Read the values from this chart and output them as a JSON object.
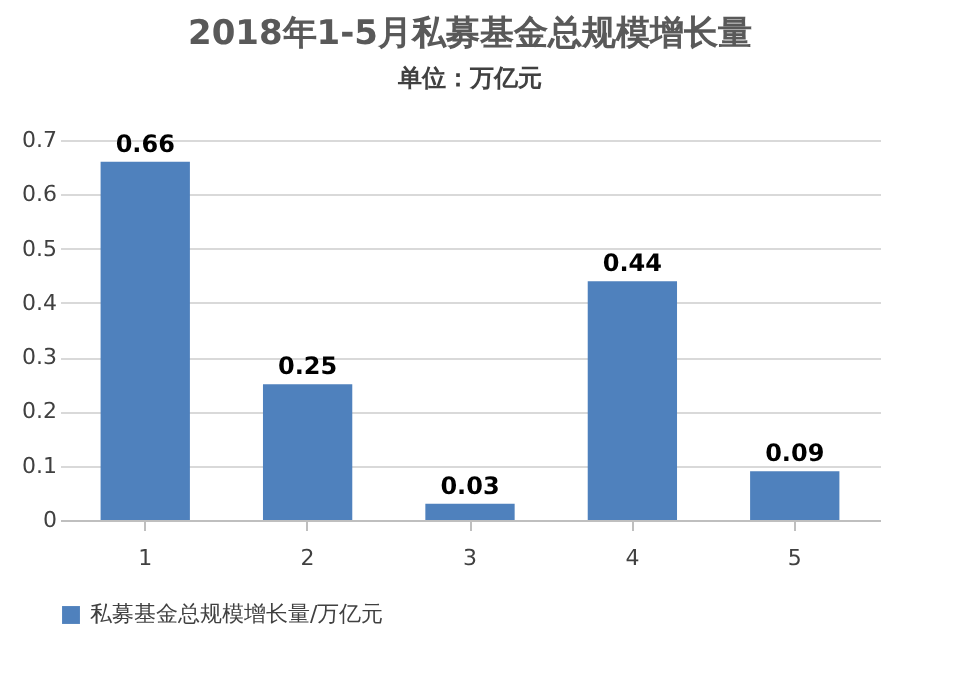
{
  "chart_data": {
    "type": "bar",
    "title": "2018年1-5月私募基金总规模增长量",
    "subtitle": "单位：万亿元",
    "categories": [
      "1",
      "2",
      "3",
      "4",
      "5"
    ],
    "series": [
      {
        "name": "私募基金总规模增长量/万亿元",
        "color": "#4f81bd",
        "values": [
          0.66,
          0.25,
          0.03,
          0.44,
          0.09
        ]
      }
    ],
    "ylim": [
      0,
      0.7
    ],
    "yticks": [
      0,
      0.1,
      0.2,
      0.3,
      0.4,
      0.5,
      0.6,
      0.7
    ],
    "grid": "y",
    "legend": "bottom",
    "data_labels": true
  }
}
